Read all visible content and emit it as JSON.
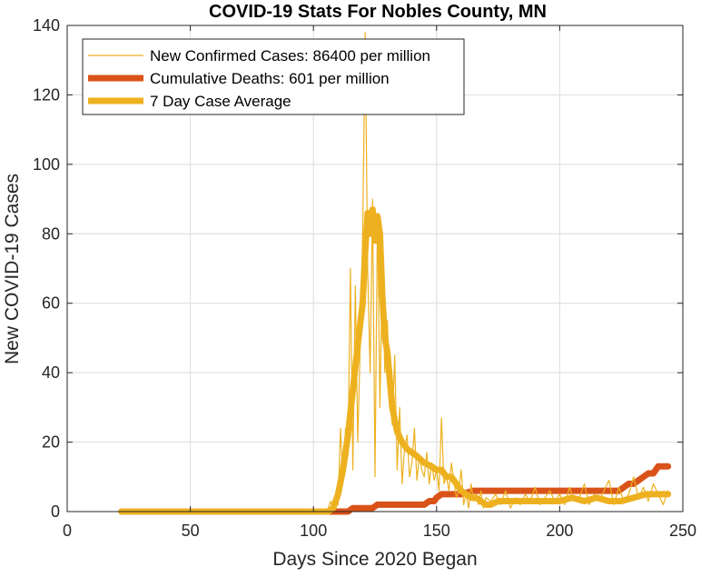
{
  "chart_data": {
    "type": "line",
    "title": "COVID-19 Stats For Nobles County, MN",
    "xlabel": "Days Since 2020 Began",
    "ylabel": "New COVID-19 Cases",
    "xlim": [
      0,
      250
    ],
    "ylim": [
      0,
      140
    ],
    "xticks": [
      0,
      50,
      100,
      150,
      200,
      250
    ],
    "yticks": [
      0,
      20,
      40,
      60,
      80,
      100,
      120,
      140
    ],
    "grid": true,
    "legend_position": "top-left",
    "series": [
      {
        "name": "New Confirmed Cases: 86400 per million",
        "color": "#EDB120",
        "style": "thin",
        "x": [
          22,
          40,
          60,
          80,
          100,
          104,
          106,
          107,
          108,
          109,
          110,
          111,
          112,
          113,
          114,
          115,
          116,
          117,
          118,
          119,
          120,
          121,
          122,
          123,
          124,
          125,
          126,
          127,
          128,
          129,
          130,
          131,
          132,
          133,
          134,
          135,
          136,
          137,
          138,
          139,
          140,
          141,
          142,
          143,
          144,
          145,
          146,
          147,
          148,
          149,
          150,
          151,
          152,
          153,
          154,
          155,
          156,
          157,
          158,
          159,
          160,
          161,
          162,
          163,
          164,
          165,
          166,
          167,
          168,
          169,
          170,
          172,
          174,
          176,
          178,
          180,
          182,
          184,
          186,
          188,
          190,
          192,
          194,
          196,
          198,
          200,
          202,
          204,
          206,
          208,
          210,
          212,
          214,
          216,
          218,
          220,
          222,
          224,
          226,
          228,
          230,
          232,
          234,
          236,
          238,
          240,
          242,
          244
        ],
        "y": [
          0,
          0,
          0,
          0,
          0,
          0,
          1,
          3,
          0,
          5,
          2,
          24,
          8,
          24,
          16,
          70,
          12,
          65,
          20,
          48,
          80,
          138,
          70,
          40,
          90,
          10,
          86,
          30,
          72,
          40,
          55,
          34,
          25,
          45,
          12,
          30,
          8,
          18,
          22,
          10,
          14,
          24,
          9,
          16,
          12,
          10,
          17,
          8,
          14,
          9,
          12,
          6,
          27,
          8,
          10,
          6,
          14,
          9,
          4,
          6,
          12,
          2,
          5,
          1,
          8,
          3,
          5,
          2,
          6,
          1,
          4,
          3,
          5,
          2,
          6,
          1,
          4,
          2,
          5,
          3,
          7,
          2,
          4,
          6,
          3,
          5,
          2,
          7,
          3,
          4,
          8,
          2,
          5,
          3,
          6,
          9,
          2,
          7,
          3,
          5,
          10,
          4,
          7,
          3,
          8,
          5,
          2,
          6
        ]
      },
      {
        "name": "Cumulative Deaths: 601 per million",
        "color": "#D95319",
        "style": "thick",
        "x": [
          22,
          105,
          110,
          114,
          116,
          120,
          122,
          124,
          126,
          130,
          140,
          145,
          147,
          149,
          150,
          152,
          155,
          160,
          165,
          170,
          180,
          190,
          200,
          210,
          220,
          224,
          226,
          228,
          230,
          232,
          234,
          236,
          238,
          240,
          244
        ],
        "y": [
          0,
          0,
          0,
          0,
          1,
          1,
          1,
          1,
          2,
          2,
          2,
          2,
          3,
          3,
          4,
          5,
          5,
          5,
          6,
          6,
          6,
          6,
          6,
          6,
          6,
          6,
          7,
          8,
          8,
          9,
          10,
          11,
          11,
          13,
          13
        ]
      },
      {
        "name": "7 Day Case Average",
        "color": "#EDB120",
        "style": "thick",
        "x": [
          22,
          40,
          60,
          80,
          100,
          106,
          108,
          110,
          112,
          114,
          116,
          118,
          120,
          121,
          122,
          123,
          124,
          125,
          126,
          127,
          128,
          129,
          130,
          131,
          132,
          134,
          136,
          138,
          140,
          142,
          145,
          148,
          150,
          152,
          154,
          156,
          158,
          160,
          162,
          164,
          166,
          168,
          170,
          172,
          175,
          180,
          185,
          190,
          195,
          200,
          205,
          210,
          215,
          220,
          225,
          230,
          235,
          240,
          244
        ],
        "y": [
          0,
          0,
          0,
          0,
          0,
          0,
          1,
          5,
          12,
          22,
          35,
          48,
          60,
          75,
          86,
          80,
          87,
          78,
          85,
          80,
          62,
          50,
          46,
          38,
          30,
          23,
          20,
          18,
          17,
          16,
          14,
          13,
          12,
          12,
          10,
          10,
          8,
          6,
          5,
          4,
          4,
          3,
          2,
          2,
          3,
          3,
          3,
          3,
          3,
          3,
          4,
          3,
          4,
          3,
          3,
          4,
          5,
          5,
          5
        ]
      }
    ]
  }
}
